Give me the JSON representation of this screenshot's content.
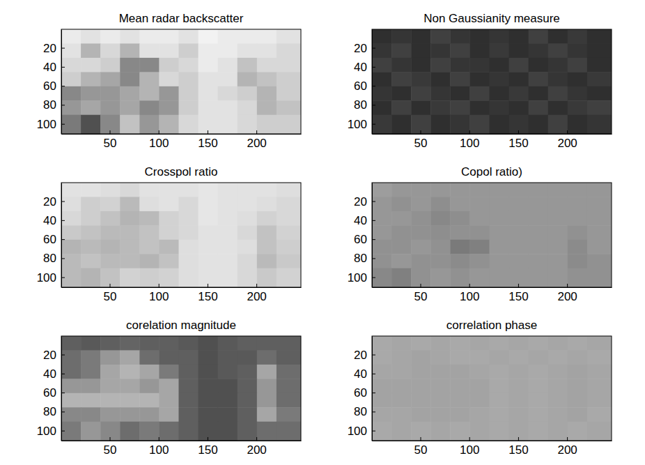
{
  "chart_data": [
    {
      "type": "heatmap",
      "title": "Mean radar backscatter",
      "color": "gray",
      "zlim": [
        0,
        1
      ],
      "xlim": [
        0.5,
        245.5
      ],
      "ylim": [
        0.5,
        110.5
      ],
      "xticks": [
        50,
        100,
        150,
        200
      ],
      "yticks": [
        20,
        40,
        60,
        80,
        100
      ],
      "x_edges": [
        0.5,
        20.5,
        40.5,
        60.5,
        80.5,
        100.5,
        120.5,
        140.5,
        160.5,
        180.5,
        200.5,
        220.5,
        245.5
      ],
      "y_edges": [
        0.5,
        15.5,
        30.5,
        45.5,
        60.5,
        75.5,
        90.5,
        110.5
      ],
      "cells": [
        [
          0.85,
          0.8,
          0.85,
          0.8,
          0.85,
          0.85,
          0.8,
          0.9,
          0.85,
          0.85,
          0.85,
          0.8
        ],
        [
          0.8,
          0.6,
          0.75,
          0.6,
          0.8,
          0.8,
          0.7,
          0.85,
          0.85,
          0.8,
          0.8,
          0.75
        ],
        [
          0.75,
          0.75,
          0.7,
          0.45,
          0.45,
          0.7,
          0.75,
          0.85,
          0.8,
          0.65,
          0.75,
          0.75
        ],
        [
          0.7,
          0.6,
          0.55,
          0.45,
          0.6,
          0.75,
          0.7,
          0.8,
          0.8,
          0.6,
          0.65,
          0.7
        ],
        [
          0.45,
          0.5,
          0.5,
          0.55,
          0.6,
          0.5,
          0.7,
          0.8,
          0.75,
          0.7,
          0.6,
          0.7
        ],
        [
          0.5,
          0.55,
          0.5,
          0.55,
          0.45,
          0.5,
          0.7,
          0.8,
          0.8,
          0.75,
          0.6,
          0.65
        ],
        [
          0.4,
          0.25,
          0.45,
          0.65,
          0.5,
          0.6,
          0.75,
          0.8,
          0.8,
          0.75,
          0.7,
          0.7
        ]
      ]
    },
    {
      "type": "heatmap",
      "title": "Non Gaussianity measure",
      "color": "gray",
      "zlim": [
        0,
        1
      ],
      "xlim": [
        0.5,
        245.5
      ],
      "ylim": [
        0.5,
        110.5
      ],
      "xticks": [
        50,
        100,
        150,
        200
      ],
      "yticks": [
        20,
        40,
        60,
        80,
        100
      ],
      "x_edges": [
        0.5,
        20.5,
        40.5,
        60.5,
        80.5,
        100.5,
        120.5,
        140.5,
        160.5,
        180.5,
        200.5,
        220.5,
        245.5
      ],
      "y_edges": [
        0.5,
        15.5,
        30.5,
        45.5,
        60.5,
        75.5,
        90.5,
        110.5
      ],
      "cells": [
        [
          0.15,
          0.17,
          0.15,
          0.2,
          0.17,
          0.15,
          0.17,
          0.15,
          0.2,
          0.15,
          0.18,
          0.15
        ],
        [
          0.17,
          0.2,
          0.15,
          0.17,
          0.2,
          0.15,
          0.18,
          0.15,
          0.17,
          0.2,
          0.17,
          0.15
        ],
        [
          0.2,
          0.17,
          0.15,
          0.2,
          0.17,
          0.17,
          0.15,
          0.2,
          0.15,
          0.17,
          0.2,
          0.15
        ],
        [
          0.15,
          0.2,
          0.18,
          0.15,
          0.2,
          0.15,
          0.17,
          0.15,
          0.2,
          0.17,
          0.15,
          0.18
        ],
        [
          0.17,
          0.15,
          0.2,
          0.17,
          0.15,
          0.2,
          0.15,
          0.18,
          0.15,
          0.2,
          0.17,
          0.15
        ],
        [
          0.15,
          0.2,
          0.15,
          0.18,
          0.2,
          0.15,
          0.17,
          0.15,
          0.2,
          0.15,
          0.18,
          0.2
        ],
        [
          0.18,
          0.15,
          0.2,
          0.15,
          0.17,
          0.2,
          0.15,
          0.17,
          0.15,
          0.2,
          0.15,
          0.17
        ]
      ]
    },
    {
      "type": "heatmap",
      "title": "Crosspol ratio",
      "color": "gray",
      "zlim": [
        0,
        1
      ],
      "xlim": [
        0.5,
        245.5
      ],
      "ylim": [
        0.5,
        110.5
      ],
      "xticks": [
        50,
        100,
        150,
        200
      ],
      "yticks": [
        20,
        40,
        60,
        80,
        100
      ],
      "x_edges": [
        0.5,
        20.5,
        40.5,
        60.5,
        80.5,
        100.5,
        120.5,
        140.5,
        160.5,
        180.5,
        200.5,
        220.5,
        245.5
      ],
      "y_edges": [
        0.5,
        15.5,
        30.5,
        45.5,
        60.5,
        75.5,
        90.5,
        110.5
      ],
      "cells": [
        [
          0.8,
          0.8,
          0.78,
          0.75,
          0.8,
          0.8,
          0.8,
          0.82,
          0.8,
          0.8,
          0.8,
          0.78
        ],
        [
          0.78,
          0.7,
          0.72,
          0.62,
          0.78,
          0.8,
          0.75,
          0.82,
          0.8,
          0.8,
          0.78,
          0.75
        ],
        [
          0.75,
          0.7,
          0.65,
          0.6,
          0.62,
          0.72,
          0.75,
          0.82,
          0.8,
          0.78,
          0.72,
          0.75
        ],
        [
          0.68,
          0.65,
          0.62,
          0.62,
          0.65,
          0.72,
          0.75,
          0.8,
          0.8,
          0.75,
          0.65,
          0.72
        ],
        [
          0.6,
          0.62,
          0.6,
          0.62,
          0.65,
          0.62,
          0.78,
          0.8,
          0.8,
          0.78,
          0.65,
          0.7
        ],
        [
          0.62,
          0.65,
          0.62,
          0.62,
          0.6,
          0.65,
          0.78,
          0.8,
          0.8,
          0.75,
          0.62,
          0.68
        ],
        [
          0.62,
          0.6,
          0.65,
          0.72,
          0.7,
          0.72,
          0.78,
          0.8,
          0.8,
          0.75,
          0.68,
          0.72
        ]
      ]
    },
    {
      "type": "heatmap",
      "title": "Copol ratio)",
      "color": "gray",
      "zlim": [
        0,
        1
      ],
      "xlim": [
        0.5,
        245.5
      ],
      "ylim": [
        0.5,
        110.5
      ],
      "xticks": [
        50,
        100,
        150,
        200
      ],
      "yticks": [
        20,
        40,
        60,
        80,
        100
      ],
      "x_edges": [
        0.5,
        20.5,
        40.5,
        60.5,
        80.5,
        100.5,
        120.5,
        140.5,
        160.5,
        180.5,
        200.5,
        220.5,
        245.5
      ],
      "y_edges": [
        0.5,
        15.5,
        30.5,
        45.5,
        60.5,
        75.5,
        90.5,
        110.5
      ],
      "cells": [
        [
          0.52,
          0.5,
          0.5,
          0.5,
          0.5,
          0.5,
          0.5,
          0.5,
          0.5,
          0.5,
          0.5,
          0.5
        ],
        [
          0.5,
          0.48,
          0.5,
          0.47,
          0.5,
          0.5,
          0.5,
          0.5,
          0.5,
          0.5,
          0.5,
          0.5
        ],
        [
          0.5,
          0.5,
          0.48,
          0.45,
          0.47,
          0.5,
          0.5,
          0.5,
          0.5,
          0.5,
          0.5,
          0.5
        ],
        [
          0.5,
          0.48,
          0.48,
          0.47,
          0.48,
          0.48,
          0.5,
          0.5,
          0.5,
          0.5,
          0.48,
          0.5
        ],
        [
          0.48,
          0.48,
          0.5,
          0.48,
          0.4,
          0.42,
          0.5,
          0.5,
          0.5,
          0.5,
          0.46,
          0.5
        ],
        [
          0.48,
          0.5,
          0.48,
          0.48,
          0.46,
          0.48,
          0.5,
          0.5,
          0.5,
          0.5,
          0.46,
          0.48
        ],
        [
          0.45,
          0.42,
          0.48,
          0.5,
          0.48,
          0.5,
          0.5,
          0.5,
          0.5,
          0.5,
          0.48,
          0.48
        ]
      ]
    },
    {
      "type": "heatmap",
      "title": "corelation magnitude",
      "color": "gray",
      "zlim": [
        0,
        1
      ],
      "xlim": [
        0.5,
        245.5
      ],
      "ylim": [
        0.5,
        110.5
      ],
      "xticks": [
        50,
        100,
        150,
        200
      ],
      "yticks": [
        20,
        40,
        60,
        80,
        100
      ],
      "x_edges": [
        0.5,
        20.5,
        40.5,
        60.5,
        80.5,
        100.5,
        120.5,
        140.5,
        160.5,
        180.5,
        200.5,
        220.5,
        245.5
      ],
      "y_edges": [
        0.5,
        15.5,
        30.5,
        45.5,
        60.5,
        75.5,
        90.5,
        110.5
      ],
      "cells": [
        [
          0.3,
          0.28,
          0.3,
          0.32,
          0.3,
          0.3,
          0.28,
          0.25,
          0.28,
          0.3,
          0.3,
          0.3
        ],
        [
          0.35,
          0.4,
          0.5,
          0.55,
          0.35,
          0.3,
          0.3,
          0.25,
          0.28,
          0.28,
          0.35,
          0.3
        ],
        [
          0.35,
          0.4,
          0.55,
          0.6,
          0.55,
          0.4,
          0.3,
          0.25,
          0.28,
          0.3,
          0.55,
          0.35
        ],
        [
          0.5,
          0.5,
          0.55,
          0.55,
          0.5,
          0.55,
          0.3,
          0.25,
          0.25,
          0.3,
          0.5,
          0.35
        ],
        [
          0.6,
          0.6,
          0.6,
          0.6,
          0.6,
          0.55,
          0.3,
          0.25,
          0.25,
          0.3,
          0.5,
          0.35
        ],
        [
          0.45,
          0.45,
          0.5,
          0.5,
          0.5,
          0.55,
          0.3,
          0.25,
          0.25,
          0.3,
          0.55,
          0.4
        ],
        [
          0.4,
          0.5,
          0.45,
          0.35,
          0.4,
          0.35,
          0.3,
          0.25,
          0.25,
          0.3,
          0.35,
          0.35
        ]
      ]
    },
    {
      "type": "heatmap",
      "title": "correlation phase",
      "color": "gray",
      "zlim": [
        0,
        1
      ],
      "xlim": [
        0.5,
        245.5
      ],
      "ylim": [
        0.5,
        110.5
      ],
      "xticks": [
        50,
        100,
        150,
        200
      ],
      "yticks": [
        20,
        40,
        60,
        80,
        100
      ],
      "x_edges": [
        0.5,
        20.5,
        40.5,
        60.5,
        80.5,
        100.5,
        120.5,
        140.5,
        160.5,
        180.5,
        200.5,
        220.5,
        245.5
      ],
      "y_edges": [
        0.5,
        15.5,
        30.5,
        45.5,
        60.5,
        75.5,
        90.5,
        110.5
      ],
      "cells": [
        [
          0.56,
          0.55,
          0.56,
          0.55,
          0.56,
          0.55,
          0.56,
          0.55,
          0.56,
          0.55,
          0.56,
          0.55
        ],
        [
          0.56,
          0.55,
          0.54,
          0.55,
          0.56,
          0.56,
          0.55,
          0.56,
          0.55,
          0.56,
          0.55,
          0.56
        ],
        [
          0.55,
          0.55,
          0.54,
          0.54,
          0.54,
          0.55,
          0.56,
          0.55,
          0.56,
          0.55,
          0.54,
          0.55
        ],
        [
          0.54,
          0.54,
          0.54,
          0.54,
          0.54,
          0.54,
          0.56,
          0.55,
          0.56,
          0.55,
          0.54,
          0.55
        ],
        [
          0.54,
          0.54,
          0.54,
          0.54,
          0.54,
          0.54,
          0.56,
          0.55,
          0.56,
          0.55,
          0.54,
          0.55
        ],
        [
          0.55,
          0.55,
          0.54,
          0.54,
          0.54,
          0.55,
          0.56,
          0.55,
          0.56,
          0.55,
          0.54,
          0.56
        ],
        [
          0.56,
          0.55,
          0.56,
          0.55,
          0.56,
          0.55,
          0.56,
          0.55,
          0.56,
          0.55,
          0.56,
          0.55
        ]
      ]
    }
  ]
}
